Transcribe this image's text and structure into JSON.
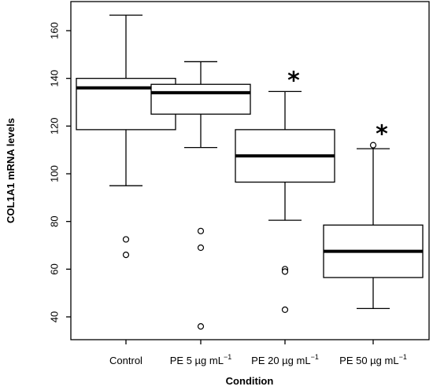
{
  "chart_data": {
    "type": "boxplot",
    "xlabel": "Condition",
    "ylabel": "COL1A1 mRNA levels",
    "ylim": [
      33,
      166
    ],
    "yticks": [
      40,
      60,
      80,
      100,
      120,
      140,
      160
    ],
    "grid": false,
    "legend": "none",
    "categories": [
      {
        "label": "Control",
        "superscript": ""
      },
      {
        "label": "PE 5 µg mL",
        "superscript": "−1"
      },
      {
        "label": "PE 20 µg mL",
        "superscript": "−1"
      },
      {
        "label": "PE 50 µg mL",
        "superscript": "−1"
      }
    ],
    "boxes": [
      {
        "whisker_low": 95,
        "q1": 118.5,
        "median": 136,
        "q3": 140,
        "whisker_high": 166.5,
        "outliers": [
          72.5,
          66
        ],
        "significance": ""
      },
      {
        "whisker_low": 111,
        "q1": 125,
        "median": 134,
        "q3": 137.5,
        "whisker_high": 147,
        "outliers": [
          76,
          69,
          36
        ],
        "significance": ""
      },
      {
        "whisker_low": 80.5,
        "q1": 96.5,
        "median": 107.5,
        "q3": 118.5,
        "whisker_high": 134.5,
        "outliers": [
          60,
          59,
          43
        ],
        "significance": "*"
      },
      {
        "whisker_low": 43.5,
        "q1": 56.5,
        "median": 67.5,
        "q3": 78.5,
        "whisker_high": 110.5,
        "outliers": [
          112
        ],
        "significance": "*"
      }
    ],
    "colors": {
      "stroke": "#000000",
      "box_fill": "#ffffff"
    }
  }
}
